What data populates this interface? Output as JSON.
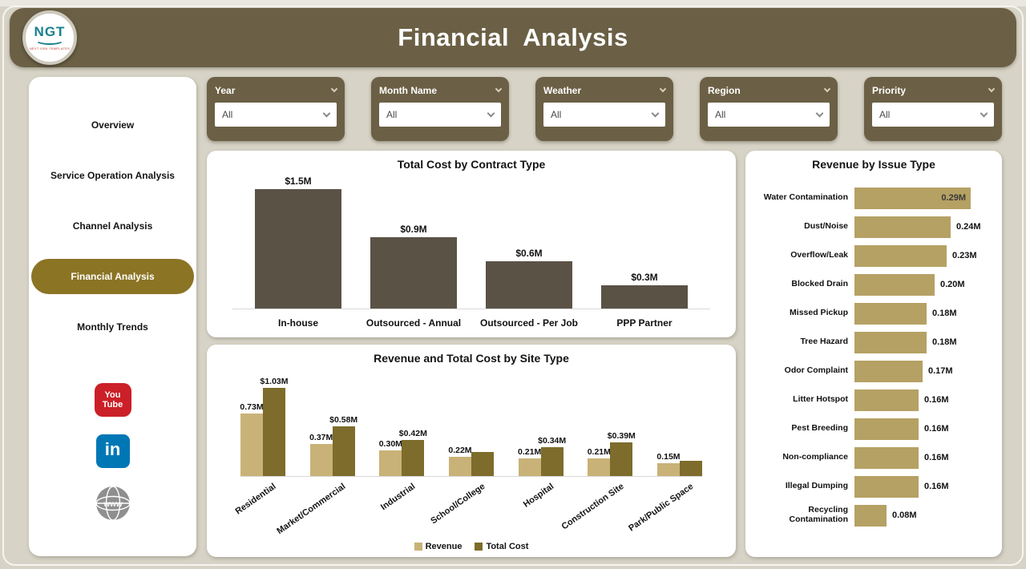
{
  "page": {
    "title": "Financial  Analysis"
  },
  "logo": {
    "text": "NGT",
    "subtext": "NEXT GEN TEMPLATES"
  },
  "sidebar": {
    "items": [
      {
        "label": "Overview",
        "active": false
      },
      {
        "label": "Service Operation Analysis",
        "active": false
      },
      {
        "label": "Channel Analysis",
        "active": false
      },
      {
        "label": "Financial Analysis",
        "active": true
      },
      {
        "label": "Monthly Trends",
        "active": false
      }
    ],
    "social": [
      {
        "name": "youtube-icon",
        "line1": "You",
        "line2": "Tube"
      },
      {
        "name": "linkedin-icon",
        "line1": "in"
      },
      {
        "name": "globe-icon",
        "line1": "www"
      }
    ]
  },
  "filters": [
    {
      "label": "Year",
      "value": "All"
    },
    {
      "label": "Month Name",
      "value": "All"
    },
    {
      "label": "Weather",
      "value": "All"
    },
    {
      "label": "Region",
      "value": "All"
    },
    {
      "label": "Priority",
      "value": "All"
    }
  ],
  "colors": {
    "header": "#6b6045",
    "accent_gold": "#8c7425",
    "bar_dark": "#5a5245",
    "revenue": "#c8b277",
    "total_cost": "#7d6c2b",
    "issue_bar": "#b5a164"
  },
  "chart_data": [
    {
      "type": "bar",
      "title": "Total Cost by Contract Type",
      "categories": [
        "In-house",
        "Outsourced - Annual",
        "Outsourced - Per Job",
        "PPP Partner"
      ],
      "values": [
        1.5,
        0.9,
        0.6,
        0.3
      ],
      "labels": [
        "$1.5M",
        "$0.9M",
        "$0.6M",
        "$0.3M"
      ],
      "unit": "M",
      "ylim": [
        0,
        1.5
      ],
      "grid": false
    },
    {
      "type": "bar",
      "title": "Revenue and Total Cost by Site Type",
      "categories": [
        "Residential",
        "Market/Commercial",
        "Industrial",
        "School/College",
        "Hospital",
        "Construction Site",
        "Park/Public Space"
      ],
      "series": [
        {
          "name": "Revenue",
          "values": [
            0.73,
            0.37,
            0.3,
            0.22,
            0.21,
            0.21,
            0.15
          ],
          "labels": [
            "0.73M",
            "0.37M",
            "0.30M",
            "0.22M",
            "0.21M",
            "0.21M",
            "0.15M"
          ]
        },
        {
          "name": "Total Cost",
          "values": [
            1.03,
            0.58,
            0.42,
            0.28,
            0.34,
            0.39,
            0.18
          ],
          "labels": [
            "$1.03M",
            "$0.58M",
            "$0.42M",
            "",
            "$0.34M",
            "$0.39M",
            ""
          ]
        }
      ],
      "legend": [
        "Revenue",
        "Total Cost"
      ],
      "legend_position": "bottom",
      "ylim": [
        0,
        1.1
      ],
      "grid": false
    },
    {
      "type": "bar-horizontal",
      "title": "Revenue by Issue Type",
      "categories": [
        "Water Contamination",
        "Dust/Noise",
        "Overflow/Leak",
        "Blocked Drain",
        "Missed Pickup",
        "Tree Hazard",
        "Odor Complaint",
        "Litter Hotspot",
        "Pest Breeding",
        "Non-compliance",
        "Illegal Dumping",
        "Recycling Contamination"
      ],
      "values": [
        0.29,
        0.24,
        0.23,
        0.2,
        0.18,
        0.18,
        0.17,
        0.16,
        0.16,
        0.16,
        0.16,
        0.08
      ],
      "labels": [
        "0.29M",
        "0.24M",
        "0.23M",
        "0.20M",
        "0.18M",
        "0.18M",
        "0.17M",
        "0.16M",
        "0.16M",
        "0.16M",
        "0.16M",
        "0.08M"
      ],
      "xlim": [
        0,
        0.3
      ],
      "grid": false
    }
  ]
}
